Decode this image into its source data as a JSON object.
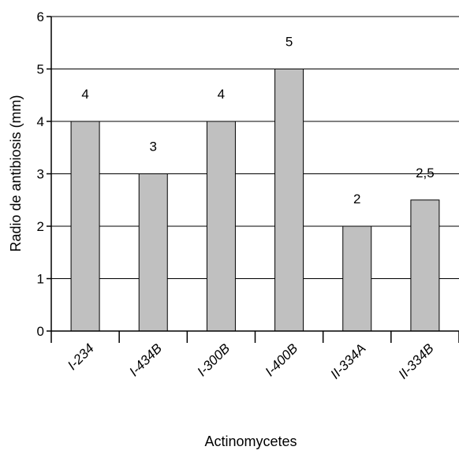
{
  "chart_data": {
    "type": "bar",
    "categories": [
      "I-234",
      "I-434B",
      "I-300B",
      "I-400B",
      "II-334A",
      "II-334B"
    ],
    "values": [
      4,
      3,
      4,
      5,
      2,
      2.5
    ],
    "data_labels": [
      "4",
      "3",
      "4",
      "5",
      "2",
      "2,5"
    ],
    "title": "",
    "xlabel": "Actinomycetes",
    "ylabel": "Radio de antibiosis (mm)",
    "ylim": [
      0,
      6
    ],
    "yticks": [
      "0",
      "1",
      "2",
      "3",
      "4",
      "5",
      "6"
    ],
    "grid": true,
    "bar_color": "#c0c0c0"
  }
}
